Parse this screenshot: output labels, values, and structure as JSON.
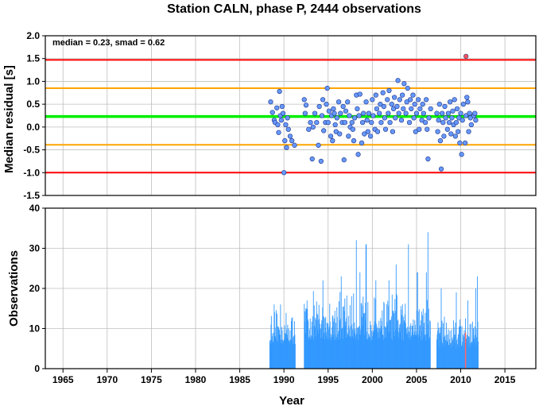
{
  "chart_data": [
    {
      "type": "scatter",
      "panel": "residuals",
      "title": "Station CALN, phase P, 2444 observations",
      "ylabel": "Median residual [s]",
      "annotation": "median = 0.23, smad = 0.62",
      "xlim": [
        1963,
        2018.5
      ],
      "ylim": [
        -1.5,
        2.0
      ],
      "yticks": [
        -1.5,
        -1.0,
        -0.5,
        0.0,
        0.5,
        1.0,
        1.5,
        2.0
      ],
      "ytick_labels": [
        "-1.5",
        "-1.0",
        "-0.5",
        "0.0",
        "0.5",
        "1.0",
        "1.5",
        "2.0"
      ],
      "grid": true,
      "reference_lines": [
        {
          "name": "median",
          "y": 0.23,
          "color": "#00ee00"
        },
        {
          "name": "median-minus-smad",
          "y": -0.39,
          "color": "#ffa500"
        },
        {
          "name": "median-plus-smad",
          "y": 0.85,
          "color": "#ffa500"
        },
        {
          "name": "lower-limit",
          "y": -1.0,
          "color": "#ff0000"
        },
        {
          "name": "upper-limit",
          "y": 1.47,
          "color": "#ff0000"
        }
      ],
      "series": [
        {
          "color": "#6699ff",
          "points": [
            [
              1988.5,
              0.55
            ],
            [
              1988.7,
              0.32
            ],
            [
              1988.9,
              0.15
            ],
            [
              1989.0,
              0.1
            ],
            [
              1989.2,
              0.42
            ],
            [
              1989.3,
              0.05
            ],
            [
              1989.4,
              -0.12
            ],
            [
              1989.5,
              0.78
            ],
            [
              1989.6,
              0.25
            ],
            [
              1989.7,
              0.15
            ],
            [
              1989.8,
              0.45
            ],
            [
              1989.9,
              0.3
            ],
            [
              1990.0,
              -1.0
            ],
            [
              1990.1,
              -0.3
            ],
            [
              1990.2,
              0.05
            ],
            [
              1990.3,
              -0.45
            ],
            [
              1990.4,
              0.2
            ],
            [
              1990.5,
              -0.05
            ],
            [
              1990.7,
              -0.2
            ],
            [
              1990.9,
              -0.3
            ],
            [
              1991.2,
              -0.4
            ],
            [
              1992.3,
              0.6
            ],
            [
              1992.4,
              0.3
            ],
            [
              1992.5,
              0.48
            ],
            [
              1992.8,
              -0.05
            ],
            [
              1993.0,
              0.1
            ],
            [
              1993.2,
              -0.7
            ],
            [
              1993.3,
              0.0
            ],
            [
              1993.5,
              0.3
            ],
            [
              1993.7,
              0.1
            ],
            [
              1993.9,
              -0.4
            ],
            [
              1994.0,
              0.45
            ],
            [
              1994.2,
              -0.75
            ],
            [
              1994.3,
              0.25
            ],
            [
              1994.4,
              0.6
            ],
            [
              1994.5,
              -0.08
            ],
            [
              1994.7,
              0.1
            ],
            [
              1994.8,
              0.5
            ],
            [
              1994.9,
              0.85
            ],
            [
              1995.0,
              0.1
            ],
            [
              1995.1,
              0.35
            ],
            [
              1995.3,
              -0.2
            ],
            [
              1995.4,
              0.25
            ],
            [
              1995.5,
              -0.3
            ],
            [
              1995.6,
              0.4
            ],
            [
              1995.7,
              0.3
            ],
            [
              1995.8,
              0.05
            ],
            [
              1995.9,
              -0.1
            ],
            [
              1996.0,
              0.2
            ],
            [
              1996.2,
              0.55
            ],
            [
              1996.3,
              -0.15
            ],
            [
              1996.4,
              0.3
            ],
            [
              1996.6,
              0.1
            ],
            [
              1996.7,
              0.45
            ],
            [
              1996.8,
              -0.72
            ],
            [
              1996.9,
              0.1
            ],
            [
              1997.0,
              0.35
            ],
            [
              1997.2,
              0.55
            ],
            [
              1997.3,
              -0.2
            ],
            [
              1997.4,
              0.25
            ],
            [
              1997.5,
              0.0
            ],
            [
              1997.7,
              0.1
            ],
            [
              1997.8,
              -0.05
            ],
            [
              1997.9,
              -0.3
            ],
            [
              1998.0,
              0.2
            ],
            [
              1998.2,
              0.7
            ],
            [
              1998.3,
              0.4
            ],
            [
              1998.4,
              -0.6
            ],
            [
              1998.5,
              0.25
            ],
            [
              1998.6,
              0.72
            ],
            [
              1998.8,
              -0.35
            ],
            [
              1998.9,
              0.1
            ],
            [
              1999.0,
              0.3
            ],
            [
              1999.1,
              -0.15
            ],
            [
              1999.3,
              0.55
            ],
            [
              1999.4,
              0.15
            ],
            [
              1999.5,
              -0.1
            ],
            [
              1999.6,
              0.3
            ],
            [
              1999.8,
              -0.2
            ],
            [
              1999.9,
              0.1
            ],
            [
              2000.0,
              0.6
            ],
            [
              2000.1,
              0.25
            ],
            [
              2000.3,
              -0.05
            ],
            [
              2000.4,
              0.7
            ],
            [
              2000.5,
              0.4
            ],
            [
              2000.6,
              -0.1
            ],
            [
              2000.8,
              0.3
            ],
            [
              2000.9,
              0.5
            ],
            [
              2001.0,
              0.1
            ],
            [
              2001.2,
              0.75
            ],
            [
              2001.3,
              0.45
            ],
            [
              2001.4,
              0.2
            ],
            [
              2001.5,
              -0.05
            ],
            [
              2001.7,
              0.6
            ],
            [
              2001.8,
              0.3
            ],
            [
              2001.9,
              0.8
            ],
            [
              2002.0,
              0.1
            ],
            [
              2002.2,
              0.5
            ],
            [
              2002.3,
              -0.1
            ],
            [
              2002.4,
              0.4
            ],
            [
              2002.5,
              0.65
            ],
            [
              2002.6,
              0.2
            ],
            [
              2002.8,
              0.45
            ],
            [
              2002.9,
              1.02
            ],
            [
              2003.0,
              0.3
            ],
            [
              2003.1,
              0.6
            ],
            [
              2003.3,
              0.15
            ],
            [
              2003.4,
              0.7
            ],
            [
              2003.5,
              0.4
            ],
            [
              2003.6,
              0.95
            ],
            [
              2003.8,
              0.3
            ],
            [
              2003.9,
              0.55
            ],
            [
              2004.0,
              0.85
            ],
            [
              2004.2,
              0.1
            ],
            [
              2004.3,
              0.6
            ],
            [
              2004.4,
              0.4
            ],
            [
              2004.6,
              0.7
            ],
            [
              2004.7,
              0.2
            ],
            [
              2004.8,
              0.5
            ],
            [
              2004.9,
              -0.1
            ],
            [
              2005.0,
              0.3
            ],
            [
              2005.2,
              0.6
            ],
            [
              2005.3,
              -0.05
            ],
            [
              2005.4,
              0.4
            ],
            [
              2005.6,
              0.15
            ],
            [
              2005.7,
              0.5
            ],
            [
              2005.8,
              0.3
            ],
            [
              2006.0,
              0.1
            ],
            [
              2006.1,
              0.6
            ],
            [
              2006.2,
              -0.05
            ],
            [
              2006.3,
              -0.7
            ],
            [
              2006.4,
              0.2
            ],
            [
              2006.6,
              0.4
            ],
            [
              2007.3,
              0.3
            ],
            [
              2007.4,
              -0.1
            ],
            [
              2007.5,
              0.15
            ],
            [
              2007.6,
              0.5
            ],
            [
              2007.7,
              -0.3
            ],
            [
              2007.8,
              -0.92
            ],
            [
              2007.9,
              0.3
            ],
            [
              2008.0,
              0.1
            ],
            [
              2008.1,
              -0.2
            ],
            [
              2008.2,
              0.45
            ],
            [
              2008.3,
              0.2
            ],
            [
              2008.5,
              -0.05
            ],
            [
              2008.6,
              0.3
            ],
            [
              2008.7,
              0.1
            ],
            [
              2008.8,
              0.55
            ],
            [
              2008.9,
              -0.15
            ],
            [
              2009.0,
              0.2
            ],
            [
              2009.1,
              0.35
            ],
            [
              2009.2,
              0.05
            ],
            [
              2009.3,
              0.6
            ],
            [
              2009.4,
              -0.2
            ],
            [
              2009.5,
              0.1
            ],
            [
              2009.6,
              0.4
            ],
            [
              2009.7,
              -0.1
            ],
            [
              2009.8,
              0.2
            ],
            [
              2009.9,
              -0.35
            ],
            [
              2010.0,
              0.3
            ],
            [
              2010.1,
              -0.6
            ],
            [
              2010.2,
              0.15
            ],
            [
              2010.3,
              0.5
            ],
            [
              2010.5,
              -0.35
            ],
            [
              2010.6,
              0.25
            ],
            [
              2010.7,
              0.65
            ],
            [
              2010.8,
              0.55
            ],
            [
              2010.9,
              -0.1
            ],
            [
              2011.0,
              0.3
            ],
            [
              2011.1,
              0.2
            ],
            [
              2011.2,
              0.05
            ],
            [
              2011.5,
              0.25
            ],
            [
              2011.6,
              0.3
            ],
            [
              2011.7,
              0.15
            ]
          ]
        },
        {
          "color": "#ff5555",
          "points": [
            [
              2010.6,
              1.55
            ]
          ]
        }
      ]
    },
    {
      "type": "bar",
      "panel": "observations",
      "xlabel": "Year",
      "ylabel": "Observations",
      "xlim": [
        1963,
        2018.5
      ],
      "ylim": [
        0,
        40
      ],
      "xticks": [
        1965,
        1970,
        1975,
        1980,
        1985,
        1990,
        1995,
        2000,
        2005,
        2010,
        2015
      ],
      "xtick_labels": [
        "1965",
        "1970",
        "1975",
        "1980",
        "1985",
        "1990",
        "1995",
        "2000",
        "2005",
        "2010",
        "2015"
      ],
      "yticks": [
        0,
        10,
        20,
        30,
        40
      ],
      "ytick_labels": [
        "0",
        "10",
        "20",
        "30",
        "40"
      ],
      "grid": true,
      "bar_color": "#3399ff",
      "highlight_color": "#ff6666",
      "segments": [
        {
          "start": 1988.4,
          "end": 1991.3,
          "base": 6,
          "amp": 9,
          "peaks": [
            [
              1988.9,
              16
            ],
            [
              1989.6,
              16
            ],
            [
              1990.5,
              10
            ]
          ]
        },
        {
          "start": 1992.3,
          "end": 2006.6,
          "base": 7,
          "amp": 13,
          "peaks": [
            [
              1992.6,
              17
            ],
            [
              1994.4,
              22
            ],
            [
              1996.5,
              23
            ],
            [
              1998.2,
              32
            ],
            [
              1998.6,
              24
            ],
            [
              1999.3,
              31
            ],
            [
              2000.4,
              22
            ],
            [
              2001.9,
              22
            ],
            [
              2002.7,
              26
            ],
            [
              2004.1,
              31
            ],
            [
              2005.1,
              24
            ],
            [
              2006.3,
              34
            ],
            [
              2006.1,
              24
            ]
          ]
        },
        {
          "start": 2007.3,
          "end": 2012.0,
          "base": 5,
          "amp": 10,
          "peaks": [
            [
              2007.8,
              20
            ],
            [
              2009.5,
              19
            ],
            [
              2010.8,
              17
            ],
            [
              2011.9,
              23
            ],
            [
              2011.7,
              20
            ]
          ]
        }
      ],
      "highlight": {
        "x": 2010.55,
        "value": 9
      }
    }
  ]
}
